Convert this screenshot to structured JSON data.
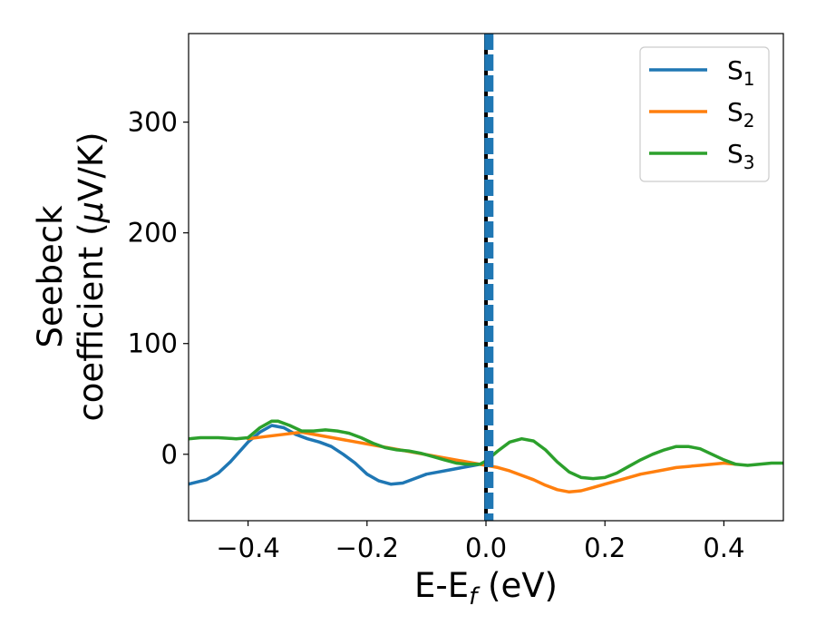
{
  "chart_data": {
    "type": "line",
    "title": "",
    "xlabel": "E-E",
    "xlabel_sub": "f",
    "xlabel_unit": " (eV)",
    "ylabel_line1": "Seebeck",
    "ylabel_line2": "coefficient  (",
    "ylabel_mu": "μ",
    "ylabel_unit": "V/K)",
    "xlim": [
      -0.5,
      0.5
    ],
    "ylim": [
      -60,
      380
    ],
    "xticks": [
      -0.4,
      -0.2,
      0.0,
      0.2,
      0.4
    ],
    "xtick_labels": [
      "−0.4",
      "−0.2",
      "0.0",
      "0.2",
      "0.4"
    ],
    "yticks": [
      0,
      100,
      200,
      300
    ],
    "ytick_labels": [
      "0",
      "100",
      "200",
      "300"
    ],
    "grid": false,
    "legend_position": "top-right",
    "vlines": [
      {
        "x": 0.0,
        "style": "solid",
        "color": "#000000"
      },
      {
        "x": 0.005,
        "style": "dashed",
        "color": "#1f77b4"
      }
    ],
    "series": [
      {
        "name": "S",
        "subscript": "1",
        "color": "#1f77b4",
        "x": [
          -0.5,
          -0.47,
          -0.45,
          -0.43,
          -0.4,
          -0.38,
          -0.36,
          -0.34,
          -0.32,
          -0.3,
          -0.28,
          -0.26,
          -0.24,
          -0.22,
          -0.2,
          -0.18,
          -0.16,
          -0.14,
          -0.12,
          -0.1,
          -0.08,
          -0.06,
          -0.04,
          -0.02,
          0.0
        ],
        "y": [
          -27,
          -23,
          -17,
          -7,
          11,
          20,
          26,
          24,
          18,
          14,
          11,
          7,
          0,
          -8,
          -18,
          -24,
          -27,
          -26,
          -22,
          -18,
          -16,
          -14,
          -12,
          -10,
          -8
        ]
      },
      {
        "name": "S",
        "subscript": "2",
        "color": "#ff7f0e",
        "x": [
          -0.4,
          -0.37,
          -0.34,
          -0.31,
          0.0,
          0.02,
          0.04,
          0.06,
          0.08,
          0.1,
          0.12,
          0.14,
          0.16,
          0.18,
          0.2,
          0.22,
          0.24,
          0.26,
          0.28,
          0.3,
          0.32,
          0.34,
          0.36,
          0.38,
          0.4,
          0.42
        ],
        "y": [
          14,
          16,
          18,
          20,
          -10,
          -12,
          -15,
          -19,
          -23,
          -28,
          -32,
          -34,
          -33,
          -30,
          -27,
          -24,
          -21,
          -18,
          -16,
          -14,
          -12,
          -11,
          -10,
          -9,
          -8,
          -9
        ]
      },
      {
        "name": "S",
        "subscript": "3",
        "color": "#2ca02c",
        "x": [
          -0.5,
          -0.48,
          -0.45,
          -0.42,
          -0.4,
          -0.38,
          -0.36,
          -0.35,
          -0.33,
          -0.31,
          -0.29,
          -0.27,
          -0.25,
          -0.23,
          -0.21,
          -0.19,
          -0.17,
          -0.15,
          -0.13,
          -0.11,
          -0.09,
          -0.07,
          -0.05,
          -0.03,
          -0.01,
          0.0,
          0.02,
          0.04,
          0.06,
          0.08,
          0.1,
          0.12,
          0.14,
          0.16,
          0.18,
          0.2,
          0.22,
          0.24,
          0.26,
          0.28,
          0.3,
          0.32,
          0.34,
          0.36,
          0.38,
          0.4,
          0.42,
          0.44,
          0.46,
          0.48,
          0.5
        ],
        "y": [
          14,
          15,
          15,
          14,
          15,
          24,
          30,
          30,
          26,
          21,
          21,
          22,
          21,
          19,
          15,
          10,
          6,
          4,
          3,
          1,
          -2,
          -5,
          -8,
          -9,
          -9,
          -6,
          3,
          11,
          14,
          12,
          4,
          -7,
          -16,
          -21,
          -22,
          -21,
          -17,
          -11,
          -5,
          0,
          4,
          7,
          7,
          5,
          0,
          -5,
          -9,
          -10,
          -9,
          -8,
          -8
        ]
      }
    ]
  }
}
